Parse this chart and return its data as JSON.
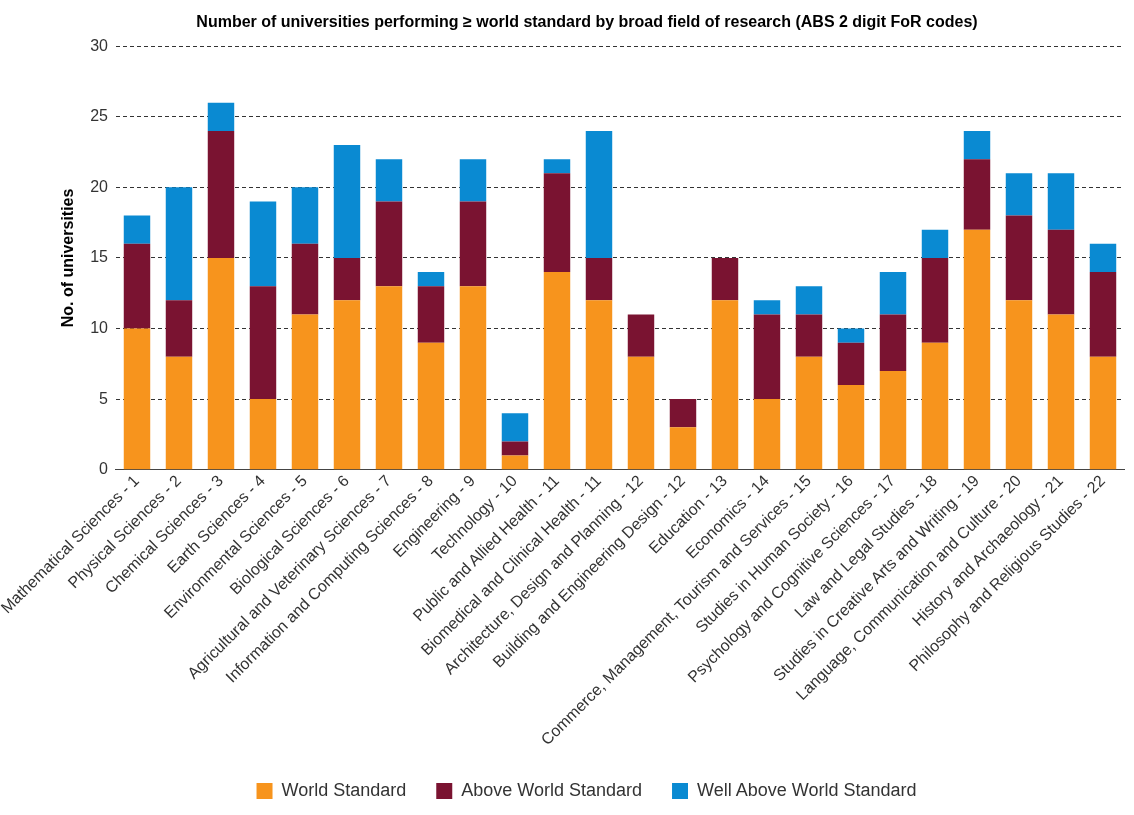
{
  "chart_data": {
    "type": "bar",
    "title": "Number of universities performing ≥ world standard by broad field of research (ABS 2 digit FoR codes)",
    "ylabel": "No. of universities",
    "categories": [
      "Mathematical Sciences - 1",
      "Physical Sciences - 2",
      "Chemical Sciences - 3",
      "Earth Sciences - 4",
      "Environmental Sciences - 5",
      "Biological Sciences - 6",
      "Agricultural and Veterinary Sciences - 7",
      "Information and Computing Sciences - 8",
      "Engineering - 9",
      "Technology - 10",
      "Public and Allied Health - 11",
      "Biomedical and Clinical Health - 11",
      "Architecture, Design and Planning - 12",
      "Building and Engineering Design - 12",
      "Education - 13",
      "Economics - 14",
      "Commerce, Management, Tourism and Services - 15",
      "Studies in Human Society - 16",
      "Psychology and Cognitive Sciences - 17",
      "Law and Legal Studies - 18",
      "Studies in Creative Arts and Writing - 19",
      "Language, Communication and Culture - 20",
      "History and Archaeology - 21",
      "Philosophy and Religious Studies - 22"
    ],
    "series": [
      {
        "name": "World Standard",
        "color": "#f7941d",
        "values": [
          10,
          8,
          15,
          5,
          11,
          12,
          13,
          9,
          13,
          1,
          14,
          12,
          8,
          3,
          12,
          5,
          8,
          6,
          7,
          9,
          17,
          12,
          11,
          8
        ]
      },
      {
        "name": "Above World Standard",
        "color": "#7a1331",
        "values": [
          6,
          4,
          9,
          8,
          5,
          3,
          6,
          4,
          6,
          1,
          7,
          3,
          3,
          2,
          3,
          6,
          3,
          3,
          4,
          6,
          5,
          6,
          6,
          6
        ]
      },
      {
        "name": "Well Above World Standard",
        "color": "#0a8ad2",
        "values": [
          2,
          8,
          2,
          6,
          4,
          8,
          3,
          1,
          3,
          2,
          1,
          9,
          0,
          0,
          0,
          1,
          2,
          1,
          3,
          2,
          2,
          3,
          4,
          2
        ]
      }
    ],
    "stacked": true,
    "ylim": [
      0,
      30
    ],
    "yticks": [
      0,
      5,
      10,
      15,
      20,
      25,
      30
    ],
    "grid": "y",
    "legend": "bottom"
  }
}
